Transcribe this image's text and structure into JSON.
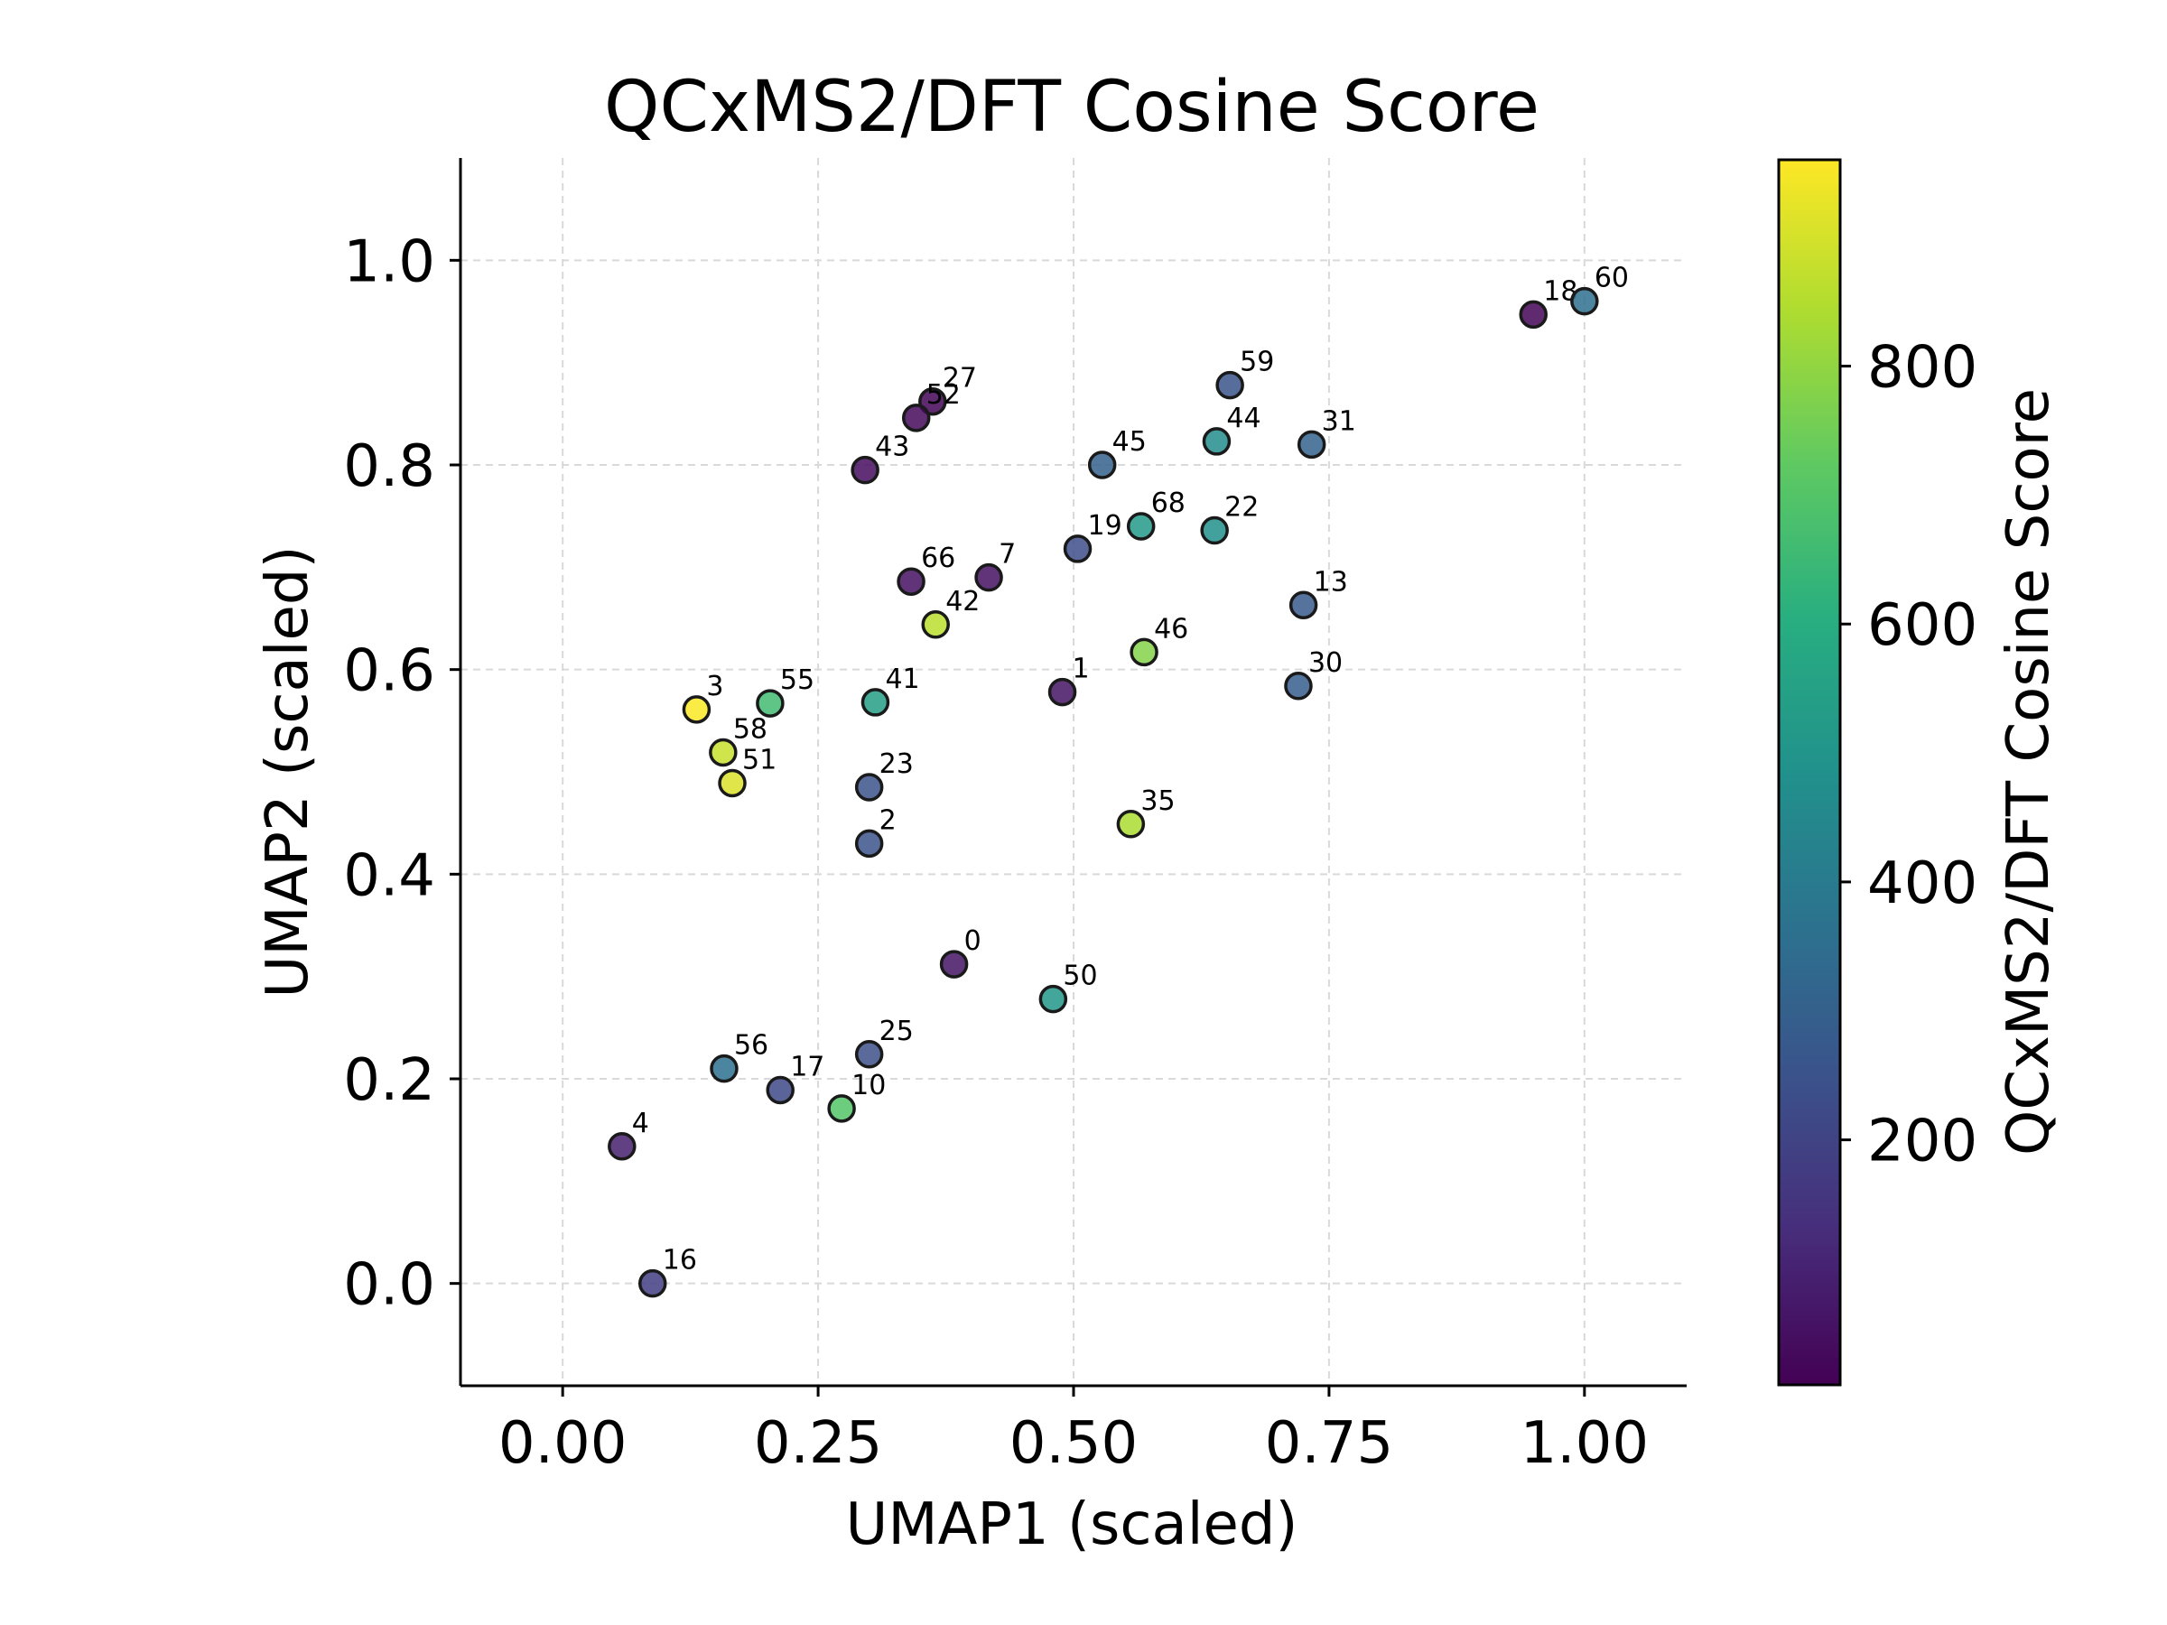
{
  "chart_data": {
    "type": "scatter",
    "title": "QCxMS2/DFT Cosine Score",
    "xlabel": "UMAP1 (scaled)",
    "ylabel": "UMAP2 (scaled)",
    "xlim": [
      -0.1,
      1.1
    ],
    "ylim": [
      -0.1,
      1.1
    ],
    "xticks": [
      "0.00",
      "0.25",
      "0.50",
      "0.75",
      "1.00"
    ],
    "yticks": [
      "0.0",
      "0.2",
      "0.4",
      "0.6",
      "0.8",
      "1.0"
    ],
    "grid": true,
    "colormap": "viridis",
    "colorbar": {
      "label": "QCxMS2/DFT Cosine Score",
      "range": [
        10,
        960
      ],
      "ticks": [
        "200",
        "400",
        "600",
        "800"
      ]
    },
    "points": [
      {
        "label": "18",
        "x": 0.95,
        "y": 0.947,
        "c": 20
      },
      {
        "label": "60",
        "x": 1.0,
        "y": 0.96,
        "c": 350
      },
      {
        "label": "59",
        "x": 0.653,
        "y": 0.878,
        "c": 260
      },
      {
        "label": "27",
        "x": 0.362,
        "y": 0.862,
        "c": 20
      },
      {
        "label": "52",
        "x": 0.346,
        "y": 0.846,
        "c": 30
      },
      {
        "label": "44",
        "x": 0.64,
        "y": 0.823,
        "c": 470
      },
      {
        "label": "31",
        "x": 0.733,
        "y": 0.82,
        "c": 310
      },
      {
        "label": "45",
        "x": 0.528,
        "y": 0.8,
        "c": 300
      },
      {
        "label": "43",
        "x": 0.296,
        "y": 0.795,
        "c": 40
      },
      {
        "label": "68",
        "x": 0.566,
        "y": 0.74,
        "c": 520
      },
      {
        "label": "22",
        "x": 0.638,
        "y": 0.736,
        "c": 480
      },
      {
        "label": "19",
        "x": 0.504,
        "y": 0.718,
        "c": 230
      },
      {
        "label": "7",
        "x": 0.417,
        "y": 0.69,
        "c": 50
      },
      {
        "label": "66",
        "x": 0.341,
        "y": 0.686,
        "c": 50
      },
      {
        "label": "13",
        "x": 0.725,
        "y": 0.663,
        "c": 280
      },
      {
        "label": "42",
        "x": 0.365,
        "y": 0.644,
        "c": 860
      },
      {
        "label": "46",
        "x": 0.569,
        "y": 0.617,
        "c": 780
      },
      {
        "label": "30",
        "x": 0.72,
        "y": 0.584,
        "c": 290
      },
      {
        "label": "1",
        "x": 0.489,
        "y": 0.578,
        "c": 60
      },
      {
        "label": "41",
        "x": 0.306,
        "y": 0.568,
        "c": 540
      },
      {
        "label": "55",
        "x": 0.203,
        "y": 0.567,
        "c": 660
      },
      {
        "label": "3",
        "x": 0.131,
        "y": 0.561,
        "c": 955
      },
      {
        "label": "58",
        "x": 0.157,
        "y": 0.519,
        "c": 880
      },
      {
        "label": "51",
        "x": 0.166,
        "y": 0.489,
        "c": 910
      },
      {
        "label": "23",
        "x": 0.3,
        "y": 0.485,
        "c": 250
      },
      {
        "label": "35",
        "x": 0.556,
        "y": 0.449,
        "c": 840
      },
      {
        "label": "2",
        "x": 0.3,
        "y": 0.43,
        "c": 250
      },
      {
        "label": "0",
        "x": 0.383,
        "y": 0.312,
        "c": 60
      },
      {
        "label": "50",
        "x": 0.48,
        "y": 0.278,
        "c": 510
      },
      {
        "label": "25",
        "x": 0.3,
        "y": 0.224,
        "c": 240
      },
      {
        "label": "56",
        "x": 0.158,
        "y": 0.21,
        "c": 360
      },
      {
        "label": "17",
        "x": 0.213,
        "y": 0.189,
        "c": 220
      },
      {
        "label": "10",
        "x": 0.273,
        "y": 0.171,
        "c": 700
      },
      {
        "label": "4",
        "x": 0.058,
        "y": 0.134,
        "c": 90
      },
      {
        "label": "16",
        "x": 0.088,
        "y": 0.0,
        "c": 180
      }
    ]
  }
}
